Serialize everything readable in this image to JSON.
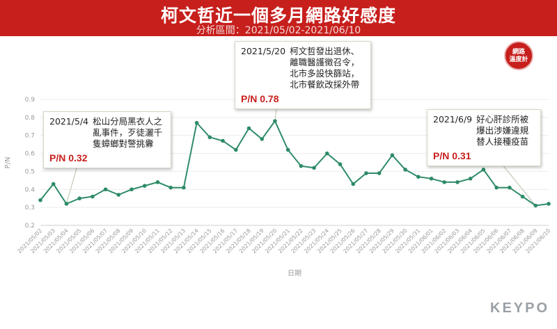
{
  "header": {
    "title": "柯文哲近一個多月網路好感度",
    "subtitle": "分析區間：2021/05/02-2021/06/10"
  },
  "badge": {
    "line1": "網路",
    "line2": "溫度計"
  },
  "callouts": [
    {
      "date": "2021/5/4",
      "text": "松山分局黑衣人之亂事件，歹徒灑千隻蟑螂對警挑釁",
      "pn": "P/N 0.32"
    },
    {
      "date": "2021/5/20",
      "text": "柯文哲發出退休、離職醫護徵召令，北市多設快篩站，北市餐飲改採外帶",
      "pn": "P/N 0.78"
    },
    {
      "date": "2021/6/9",
      "text": "好心肝診所被爆出涉嫌違規替人接種疫苗",
      "pn": "P/N 0.31"
    }
  ],
  "logo": "KEYPO",
  "chart_data": {
    "type": "line",
    "title": "柯文哲近一個多月網路好感度",
    "xlabel": "日期",
    "ylabel": "P/N",
    "ylim": [
      0.2,
      0.9
    ],
    "yticks": [
      "0.2",
      "0.3",
      "0.4",
      "0.5",
      "0.6",
      "0.7",
      "0.8",
      "0.9"
    ],
    "grid": true,
    "line_color": "#2e8b67",
    "categories": [
      "2021/05/02",
      "2021/05/03",
      "2021/05/04",
      "2021/05/05",
      "2021/05/06",
      "2021/05/07",
      "2021/05/08",
      "2021/05/09",
      "2021/05/10",
      "2021/05/11",
      "2021/05/12",
      "2021/05/13",
      "2021/05/14",
      "2021/05/15",
      "2021/05/16",
      "2021/05/17",
      "2021/05/18",
      "2021/05/19",
      "2021/05/20",
      "2021/05/21",
      "2021/05/22",
      "2021/05/23",
      "2021/05/24",
      "2021/05/25",
      "2021/05/26",
      "2021/05/27",
      "2021/05/28",
      "2021/05/29",
      "2021/05/30",
      "2021/05/31",
      "2021/06/01",
      "2021/06/02",
      "2021/06/03",
      "2021/06/04",
      "2021/06/05",
      "2021/06/06",
      "2021/06/07",
      "2021/06/08",
      "2021/06/09",
      "2021/06/10"
    ],
    "values": [
      0.34,
      0.43,
      0.32,
      0.35,
      0.36,
      0.4,
      0.37,
      0.4,
      0.42,
      0.44,
      0.41,
      0.41,
      0.77,
      0.69,
      0.67,
      0.62,
      0.74,
      0.68,
      0.78,
      0.62,
      0.53,
      0.52,
      0.6,
      0.54,
      0.43,
      0.49,
      0.49,
      0.59,
      0.51,
      0.47,
      0.46,
      0.44,
      0.44,
      0.46,
      0.51,
      0.41,
      0.41,
      0.36,
      0.31,
      0.32
    ]
  }
}
